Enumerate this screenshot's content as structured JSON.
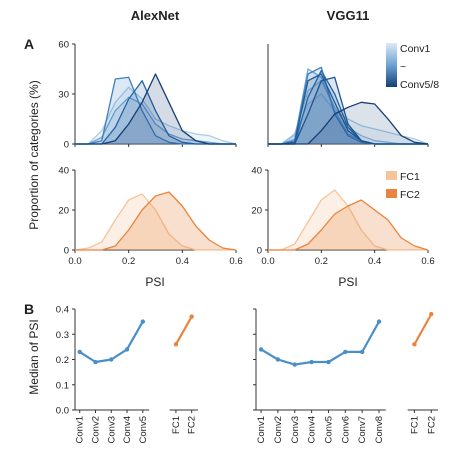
{
  "figure": {
    "col_titles": [
      "AlexNet",
      "VGG11"
    ],
    "panel_labels": [
      "A",
      "B"
    ],
    "ylabel_A": "Proportion of categories (%)",
    "xlabel_A": "PSI",
    "ylabel_B": "Median of PSI",
    "legend_conv": {
      "top": "Conv1",
      "mid": "~",
      "bottom": "Conv5/8"
    },
    "legend_fc": [
      "FC1",
      "FC2"
    ]
  },
  "colors": {
    "conv": [
      "#a9cbe8",
      "#8fbadf",
      "#6fa3d3",
      "#3f7fbf",
      "#1e5a96",
      "#2565a6",
      "#1c5592",
      "#143f73"
    ],
    "fc": [
      "#f5c49a",
      "#e8843d"
    ],
    "median": "#4a90c8",
    "median_fc": "#e8843d",
    "axis": "#333333"
  },
  "chart_data": [
    {
      "id": "A_alexnet_conv",
      "type": "area",
      "xlim": [
        0,
        0.6
      ],
      "ylim": [
        0,
        60
      ],
      "yticks": [
        0,
        30,
        60
      ],
      "x": [
        0,
        0.05,
        0.1,
        0.15,
        0.2,
        0.25,
        0.3,
        0.35,
        0.4,
        0.45,
        0.5,
        0.55,
        0.6
      ],
      "series": [
        {
          "values": [
            0,
            0,
            8,
            25,
            34,
            27,
            15,
            11,
            8,
            6,
            5,
            2,
            0
          ]
        },
        {
          "values": [
            0,
            0,
            4,
            20,
            28,
            24,
            12,
            6,
            3,
            2,
            1,
            0,
            0
          ]
        },
        {
          "values": [
            0,
            0,
            2,
            39,
            40,
            20,
            5,
            1,
            0,
            0,
            0,
            0,
            0
          ]
        },
        {
          "values": [
            0,
            0,
            0,
            10,
            27,
            38,
            20,
            5,
            1,
            0,
            0,
            0,
            0
          ]
        },
        {
          "values": [
            0,
            0,
            0,
            2,
            12,
            25,
            42,
            25,
            8,
            2,
            0,
            0,
            0
          ]
        }
      ]
    },
    {
      "id": "A_alexnet_fc",
      "type": "area",
      "xlim": [
        0,
        0.6
      ],
      "ylim": [
        0,
        40
      ],
      "yticks": [
        0,
        20,
        40
      ],
      "x": [
        0,
        0.05,
        0.1,
        0.15,
        0.2,
        0.25,
        0.3,
        0.35,
        0.4,
        0.45,
        0.5,
        0.55,
        0.6
      ],
      "series": [
        {
          "name": "FC1",
          "values": [
            0,
            1,
            4,
            15,
            25,
            28,
            20,
            8,
            2,
            0,
            0,
            0,
            0
          ]
        },
        {
          "name": "FC2",
          "values": [
            0,
            0,
            0,
            2,
            10,
            20,
            27,
            29,
            22,
            12,
            5,
            1,
            0
          ]
        }
      ]
    },
    {
      "id": "A_vgg_conv",
      "type": "area",
      "xlim": [
        0,
        0.6
      ],
      "ylim": [
        0,
        60
      ],
      "yticks": [
        0,
        30,
        60
      ],
      "x": [
        0,
        0.05,
        0.1,
        0.15,
        0.2,
        0.25,
        0.3,
        0.35,
        0.4,
        0.45,
        0.5,
        0.55,
        0.6
      ],
      "series": [
        {
          "values": [
            0,
            0,
            5,
            24,
            30,
            20,
            15,
            11,
            9,
            7,
            5,
            3,
            0
          ]
        },
        {
          "values": [
            0,
            0,
            6,
            32,
            38,
            22,
            10,
            5,
            2,
            1,
            0,
            0,
            0
          ]
        },
        {
          "values": [
            0,
            0,
            3,
            45,
            40,
            20,
            6,
            2,
            0,
            0,
            0,
            0,
            0
          ]
        },
        {
          "values": [
            0,
            0,
            2,
            42,
            46,
            18,
            5,
            1,
            0,
            0,
            0,
            0,
            0
          ]
        },
        {
          "values": [
            0,
            0,
            1,
            38,
            42,
            25,
            8,
            2,
            0,
            0,
            0,
            0,
            0
          ]
        },
        {
          "values": [
            0,
            0,
            0,
            28,
            44,
            30,
            10,
            2,
            0,
            0,
            0,
            0,
            0
          ]
        },
        {
          "values": [
            0,
            0,
            0,
            18,
            38,
            40,
            12,
            2,
            0,
            0,
            0,
            0,
            0
          ]
        },
        {
          "values": [
            0,
            0,
            0,
            0,
            8,
            18,
            22,
            25,
            24,
            15,
            5,
            1,
            0
          ]
        }
      ]
    },
    {
      "id": "A_vgg_fc",
      "type": "area",
      "xlim": [
        0,
        0.6
      ],
      "ylim": [
        0,
        40
      ],
      "yticks": [
        0,
        20,
        40
      ],
      "xticks": [
        0,
        0.2,
        0.4,
        0.6
      ],
      "xticklabels": [
        "0.0",
        "0.2",
        "0.4",
        "0.6"
      ],
      "x": [
        0,
        0.05,
        0.1,
        0.15,
        0.2,
        0.25,
        0.3,
        0.35,
        0.4,
        0.45,
        0.5,
        0.55,
        0.6
      ],
      "series": [
        {
          "name": "FC1",
          "values": [
            0,
            0,
            3,
            14,
            25,
            30,
            22,
            10,
            2,
            0,
            0,
            0,
            0
          ]
        },
        {
          "name": "FC2",
          "values": [
            0,
            0,
            0,
            3,
            10,
            18,
            22,
            25,
            20,
            15,
            6,
            2,
            0
          ]
        }
      ]
    },
    {
      "id": "B_alexnet",
      "type": "line",
      "ylim": [
        0,
        0.4
      ],
      "yticks": [
        "0.0",
        "0.1",
        "0.2",
        "0.3",
        "0.4"
      ],
      "categories": [
        "Conv1",
        "Conv2",
        "Conv3",
        "Conv4",
        "Conv5",
        "FC1",
        "FC2"
      ],
      "conv_values": [
        0.23,
        0.19,
        0.2,
        0.24,
        0.35
      ],
      "fc_values": [
        0.26,
        0.37
      ]
    },
    {
      "id": "B_vgg",
      "type": "line",
      "ylim": [
        0,
        0.4
      ],
      "categories": [
        "Conv1",
        "Conv2",
        "Conv3",
        "Conv4",
        "Conv5",
        "Conv6",
        "Conv7",
        "Conv8",
        "FC1",
        "FC2"
      ],
      "conv_values": [
        0.24,
        0.2,
        0.18,
        0.19,
        0.19,
        0.23,
        0.23,
        0.35
      ],
      "fc_values": [
        0.26,
        0.38
      ]
    }
  ]
}
